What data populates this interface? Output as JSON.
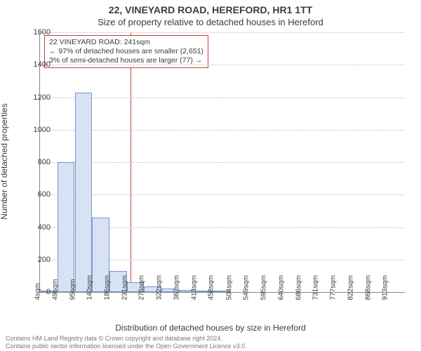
{
  "title_main": "22, VINEYARD ROAD, HEREFORD, HR1 1TT",
  "title_sub": "Size of property relative to detached houses in Hereford",
  "ylabel": "Number of detached properties",
  "xlabel": "Distribution of detached houses by size in Hereford",
  "chart": {
    "type": "histogram",
    "background_color": "#ffffff",
    "bar_fill": "#d7e2f4",
    "bar_border": "#7896c9",
    "grid_color": "#bdbdbd",
    "axis_color": "#888888",
    "ref_line_color": "#d23a3a",
    "ref_value_x": 241,
    "x_min": 4,
    "x_max": 958,
    "y_min": 0,
    "y_max": 1600,
    "y_ticks": [
      0,
      200,
      400,
      600,
      800,
      1000,
      1200,
      1400,
      1600
    ],
    "x_ticks": [
      4,
      49,
      95,
      140,
      186,
      231,
      276,
      322,
      367,
      413,
      458,
      504,
      549,
      595,
      640,
      686,
      731,
      777,
      822,
      868,
      913
    ],
    "x_tick_suffix": "sqm",
    "bin_left_edges": [
      4,
      49,
      95,
      140,
      186,
      231,
      276,
      322,
      367,
      413,
      458,
      504,
      549,
      595,
      640,
      686,
      731,
      777,
      822,
      868,
      913
    ],
    "bin_width": 45,
    "counts": [
      2,
      800,
      1230,
      460,
      130,
      60,
      35,
      20,
      12,
      8,
      6,
      0,
      0,
      0,
      0,
      0,
      0,
      0,
      0,
      0,
      0
    ]
  },
  "annotation": {
    "line1": "22 VINEYARD ROAD: 241sqm",
    "line2": "← 97% of detached houses are smaller (2,651)",
    "line3": "3% of semi-detached houses are larger (77) →"
  },
  "footer_line1": "Contains HM Land Registry data © Crown copyright and database right 2024.",
  "footer_line2": "Contains public sector information licensed under the Open Government Licence v3.0."
}
